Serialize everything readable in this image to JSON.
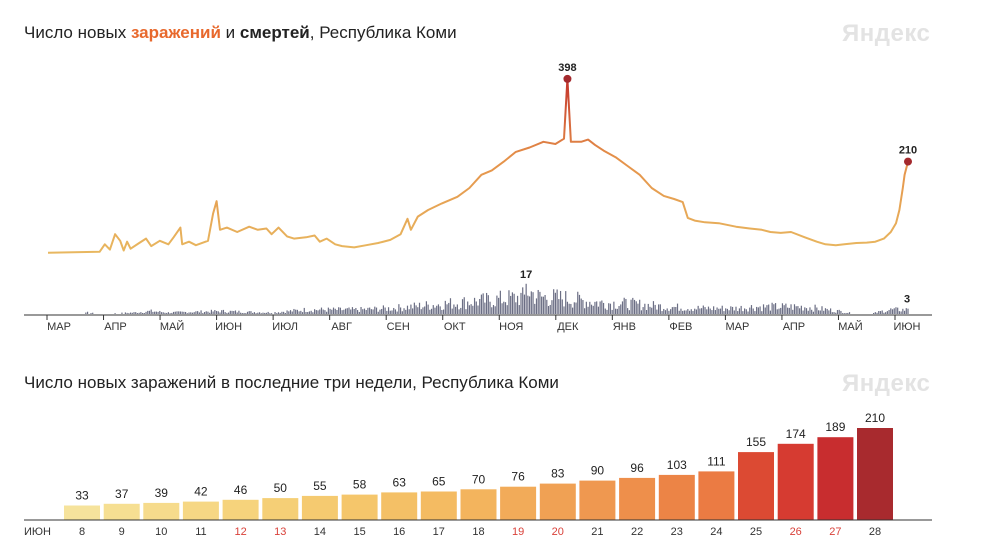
{
  "chart_data": [
    {
      "type": "line",
      "title_parts": [
        "Число новых ",
        "заражений",
        " и ",
        "смертей",
        ", Республика Коми"
      ],
      "brand": "Яндекс",
      "months": [
        "МАР",
        "АПР",
        "МАЙ",
        "ИЮН",
        "ИЮЛ",
        "АВГ",
        "СЕН",
        "ОКТ",
        "НОЯ",
        "ДЕК",
        "ЯНВ",
        "ФЕВ",
        "МАР",
        "АПР",
        "МАЙ",
        "ИЮН"
      ],
      "infections": {
        "name": "заражений",
        "peak_label": "398",
        "end_label": "210",
        "peak_value": 398,
        "end_value": 210,
        "ylim": [
          0,
          400
        ],
        "keypoints": [
          [
            0,
            3
          ],
          [
            30,
            5
          ],
          [
            33,
            22
          ],
          [
            36,
            10
          ],
          [
            39,
            45
          ],
          [
            42,
            30
          ],
          [
            44,
            8
          ],
          [
            46,
            28
          ],
          [
            48,
            12
          ],
          [
            53,
            25
          ],
          [
            57,
            35
          ],
          [
            60,
            18
          ],
          [
            65,
            30
          ],
          [
            70,
            22
          ],
          [
            73,
            38
          ],
          [
            77,
            60
          ],
          [
            78,
            22
          ],
          [
            82,
            28
          ],
          [
            86,
            20
          ],
          [
            93,
            30
          ],
          [
            96,
            92
          ],
          [
            98,
            120
          ],
          [
            100,
            55
          ],
          [
            104,
            60
          ],
          [
            110,
            50
          ],
          [
            117,
            62
          ],
          [
            122,
            55
          ],
          [
            127,
            58
          ],
          [
            130,
            45
          ],
          [
            134,
            60
          ],
          [
            139,
            40
          ],
          [
            143,
            35
          ],
          [
            150,
            38
          ],
          [
            155,
            42
          ],
          [
            158,
            28
          ],
          [
            162,
            35
          ],
          [
            167,
            22
          ],
          [
            171,
            18
          ],
          [
            178,
            15
          ],
          [
            185,
            20
          ],
          [
            192,
            25
          ],
          [
            199,
            32
          ],
          [
            205,
            45
          ],
          [
            209,
            80
          ],
          [
            211,
            55
          ],
          [
            215,
            85
          ],
          [
            221,
            100
          ],
          [
            229,
            115
          ],
          [
            238,
            130
          ],
          [
            245,
            150
          ],
          [
            252,
            180
          ],
          [
            258,
            190
          ],
          [
            265,
            210
          ],
          [
            272,
            232
          ],
          [
            280,
            242
          ],
          [
            288,
            255
          ],
          [
            295,
            250
          ],
          [
            300,
            262
          ],
          [
            302,
            398
          ],
          [
            304,
            255
          ],
          [
            310,
            255
          ],
          [
            314,
            260
          ],
          [
            318,
            248
          ],
          [
            323,
            235
          ],
          [
            330,
            220
          ],
          [
            337,
            200
          ],
          [
            344,
            180
          ],
          [
            351,
            150
          ],
          [
            358,
            132
          ],
          [
            364,
            125
          ],
          [
            369,
            118
          ],
          [
            372,
            82
          ],
          [
            376,
            76
          ],
          [
            382,
            72
          ],
          [
            390,
            70
          ],
          [
            400,
            62
          ],
          [
            408,
            58
          ],
          [
            415,
            55
          ],
          [
            420,
            50
          ],
          [
            426,
            48
          ],
          [
            432,
            50
          ],
          [
            440,
            38
          ],
          [
            447,
            28
          ],
          [
            452,
            22
          ],
          [
            458,
            20
          ],
          [
            463,
            22
          ],
          [
            470,
            25
          ],
          [
            476,
            26
          ],
          [
            481,
            28
          ],
          [
            486,
            35
          ],
          [
            490,
            50
          ],
          [
            493,
            70
          ],
          [
            495,
            100
          ],
          [
            497,
            150
          ],
          [
            498,
            180
          ],
          [
            500,
            210
          ]
        ]
      },
      "deaths": {
        "name": "смертей",
        "peak_label": "17",
        "end_label": "3",
        "peak_value": 17,
        "end_value": 3,
        "ylim": [
          0,
          18
        ],
        "keypoints": [
          [
            0,
            0
          ],
          [
            20,
            0
          ],
          [
            23,
            1
          ],
          [
            30,
            0
          ],
          [
            50,
            1
          ],
          [
            60,
            2
          ],
          [
            70,
            1
          ],
          [
            100,
            2
          ],
          [
            130,
            1
          ],
          [
            140,
            2
          ],
          [
            150,
            3
          ],
          [
            180,
            3
          ],
          [
            200,
            4
          ],
          [
            220,
            6
          ],
          [
            240,
            8
          ],
          [
            260,
            10
          ],
          [
            277,
            12
          ],
          [
            278,
            17
          ],
          [
            285,
            12
          ],
          [
            300,
            11
          ],
          [
            320,
            8
          ],
          [
            340,
            7
          ],
          [
            360,
            5
          ],
          [
            380,
            4
          ],
          [
            400,
            4
          ],
          [
            410,
            5
          ],
          [
            420,
            5
          ],
          [
            440,
            5
          ],
          [
            460,
            2
          ],
          [
            470,
            0
          ],
          [
            478,
            0
          ],
          [
            485,
            2
          ],
          [
            490,
            3
          ],
          [
            500,
            3
          ]
        ]
      },
      "colors": {
        "low": "#e8b860",
        "mid": "#e5924a",
        "high": "#c4342b",
        "deaths": "#6b6e84"
      }
    },
    {
      "type": "bar",
      "title": "Число новых заражений в последние три недели, Республика Коми",
      "brand": "Яндекс",
      "month_label": "ИЮН",
      "categories": [
        "8",
        "9",
        "10",
        "11",
        "12",
        "13",
        "14",
        "15",
        "16",
        "17",
        "18",
        "19",
        "20",
        "21",
        "22",
        "23",
        "24",
        "25",
        "26",
        "27",
        "28"
      ],
      "values": [
        33,
        37,
        39,
        42,
        46,
        50,
        55,
        58,
        63,
        65,
        70,
        76,
        83,
        90,
        96,
        103,
        111,
        155,
        174,
        189,
        210
      ],
      "weekend": [
        false,
        false,
        false,
        false,
        true,
        true,
        false,
        false,
        false,
        false,
        false,
        true,
        true,
        false,
        false,
        false,
        false,
        false,
        true,
        true,
        false
      ],
      "colors": [
        "#f6e39c",
        "#f6df92",
        "#f6db8c",
        "#f6d784",
        "#f6d37c",
        "#f5cf76",
        "#f5ca70",
        "#f5c66b",
        "#f4c066",
        "#f4bb62",
        "#f3b45d",
        "#f2ab59",
        "#f0a154",
        "#ef9850",
        "#ee8f4b",
        "#ec8446",
        "#eb7b43",
        "#dc4a33",
        "#d63b31",
        "#c82d2f",
        "#a82a2e"
      ],
      "ylim": [
        0,
        210
      ]
    }
  ]
}
